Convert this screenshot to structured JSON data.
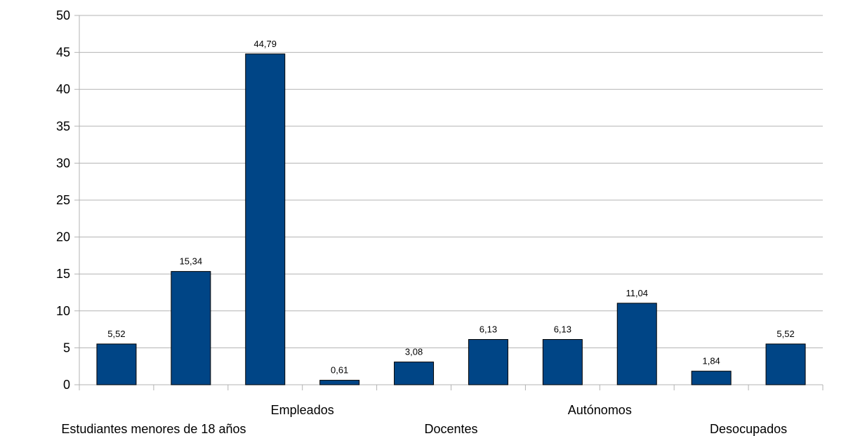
{
  "chart_data": {
    "type": "bar",
    "categories": [
      "Estudiantes menores de 18 años",
      "",
      "Empleados",
      "",
      "Docentes",
      "",
      "Autónomos",
      "",
      "Desocupados",
      ""
    ],
    "values": [
      5.52,
      15.34,
      44.79,
      0.61,
      3.08,
      6.13,
      6.13,
      11.04,
      1.84,
      5.52
    ],
    "data_labels": [
      "5,52",
      "15,34",
      "44,79",
      "0,61",
      "3,08",
      "6,13",
      "6,13",
      "11,04",
      "1,84",
      "5,52"
    ],
    "ylim": [
      0,
      50
    ],
    "yticks": [
      0,
      5,
      10,
      15,
      20,
      25,
      30,
      35,
      40,
      45,
      50
    ],
    "grid": true,
    "bar_color": "#004586",
    "title": "",
    "xlabel": "",
    "ylabel": ""
  }
}
